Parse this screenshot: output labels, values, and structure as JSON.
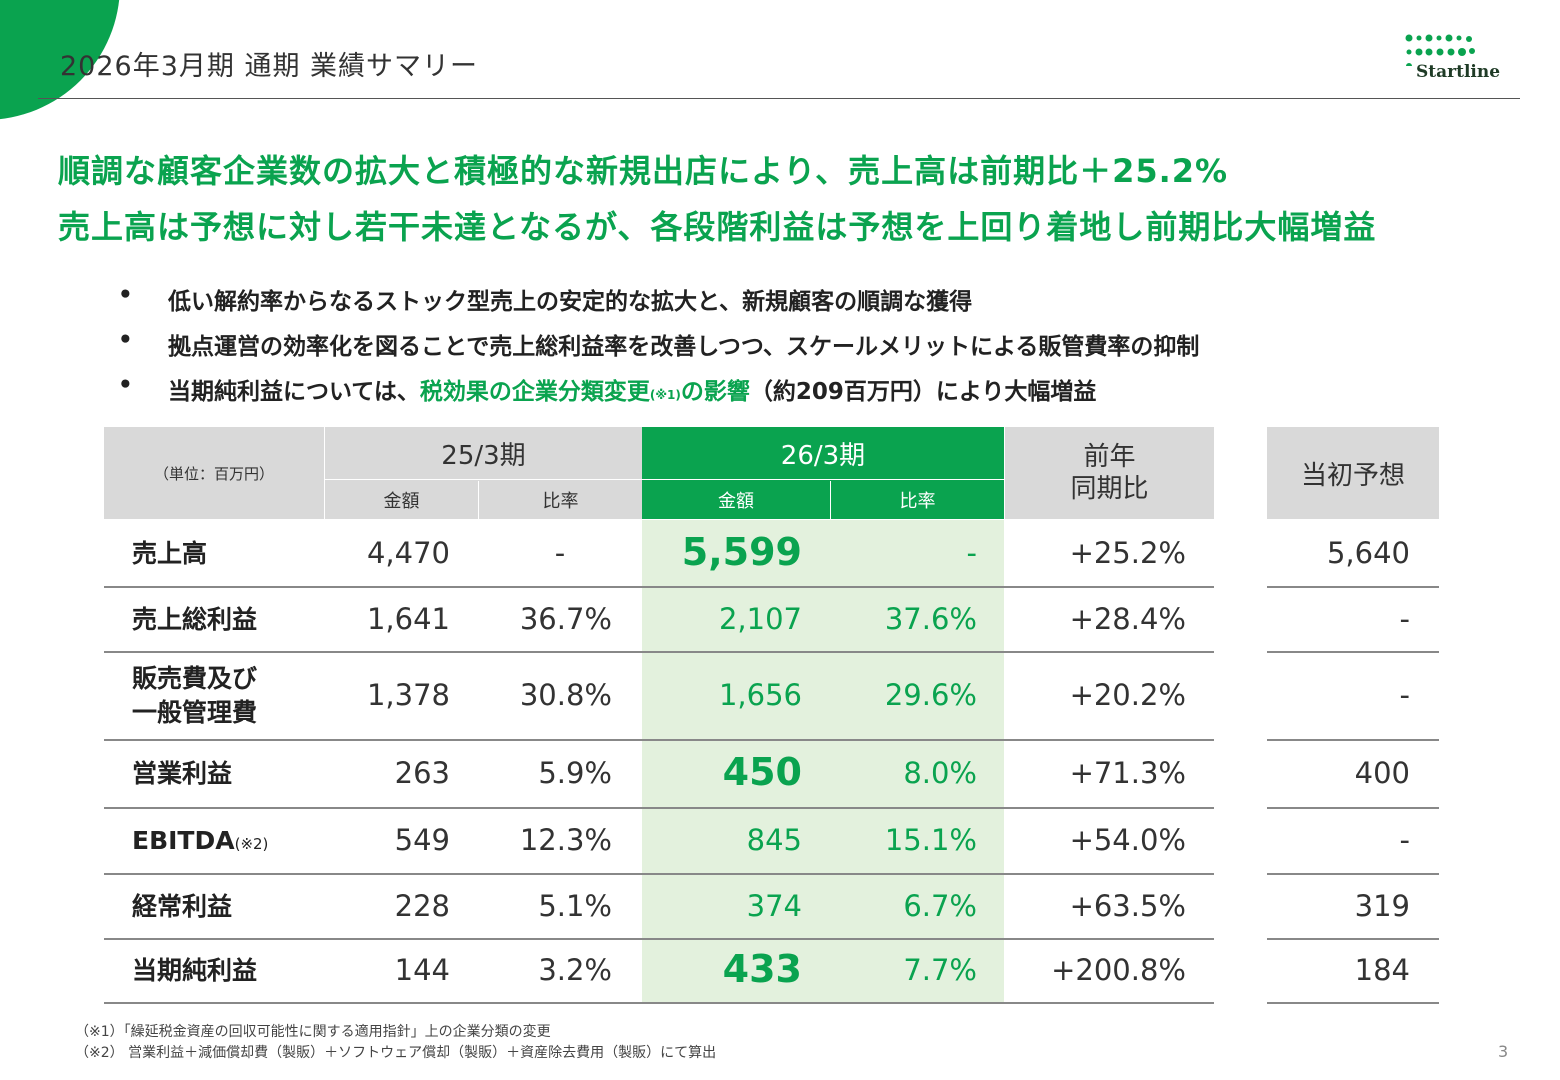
{
  "header": {
    "title": "2026年3月期 通期 業績サマリー",
    "logo_text": "Startline"
  },
  "headline": {
    "line1": "順調な顧客企業数の拡大と積極的な新規出店により、売上高は前期比＋25.2%",
    "line2": "売上高は予想に対し若干未達となるが、各段階利益は予想を上回り着地し前期比大幅増益"
  },
  "bullets": {
    "marker": "•",
    "b1": "低い解約率からなるストック型売上の安定的な拡大と、新規顧客の順調な獲得",
    "b2": "拠点運営の効率化を図ることで売上総利益率を改善しつつ、スケールメリットによる販管費率の抑制",
    "b3_pre": "当期純利益については、",
    "b3_green": "税効果の企業分類変更",
    "b3_note": "(※1)",
    "b3_green2": "の影響",
    "b3_post": "（約209百万円）により大幅増益"
  },
  "table": {
    "unit": "（単位：百万円）",
    "col_prev": "25/3期",
    "col_curr": "26/3期",
    "col_yoy": "前年\n同期比",
    "col_forecast": "当初予想",
    "sub_amount": "金額",
    "sub_ratio": "比率",
    "rows": [
      {
        "label": "売上高",
        "note": "",
        "prev_amt": "4,470",
        "prev_ratio": "-",
        "curr_amt": "5,599",
        "curr_ratio": "-",
        "yoy": "+25.2%",
        "forecast": "5,640"
      },
      {
        "label": "売上総利益",
        "note": "",
        "prev_amt": "1,641",
        "prev_ratio": "36.7%",
        "curr_amt": "2,107",
        "curr_ratio": "37.6%",
        "yoy": "+28.4%",
        "forecast": "-"
      },
      {
        "label": "販売費及び\n一般管理費",
        "note": "",
        "prev_amt": "1,378",
        "prev_ratio": "30.8%",
        "curr_amt": "1,656",
        "curr_ratio": "29.6%",
        "yoy": "+20.2%",
        "forecast": "-"
      },
      {
        "label": "営業利益",
        "note": "",
        "prev_amt": "263",
        "prev_ratio": "5.9%",
        "curr_amt": "450",
        "curr_ratio": "8.0%",
        "yoy": "+71.3%",
        "forecast": "400"
      },
      {
        "label": "EBITDA",
        "note": "(※2)",
        "prev_amt": "549",
        "prev_ratio": "12.3%",
        "curr_amt": "845",
        "curr_ratio": "15.1%",
        "yoy": "+54.0%",
        "forecast": "-"
      },
      {
        "label": "経常利益",
        "note": "",
        "prev_amt": "228",
        "prev_ratio": "5.1%",
        "curr_amt": "374",
        "curr_ratio": "6.7%",
        "yoy": "+63.5%",
        "forecast": "319"
      },
      {
        "label": "当期純利益",
        "note": "",
        "prev_amt": "144",
        "prev_ratio": "3.2%",
        "curr_amt": "433",
        "curr_ratio": "7.7%",
        "yoy": "+200.8%",
        "forecast": "184"
      }
    ]
  },
  "footnotes": {
    "n1": "（※1）「繰延税金資産の回収可能性に関する適用指針」上の企業分類の変更",
    "n2": "（※2） 営業利益＋減価償却費（製販）＋ソフトウェア償却（製販）＋資産除去費用（製販）にて算出"
  },
  "page_number": "3",
  "colors": {
    "accent": "#0aa34f",
    "highlight": "#e3f1dd",
    "header_gray": "#d9d9d9"
  }
}
